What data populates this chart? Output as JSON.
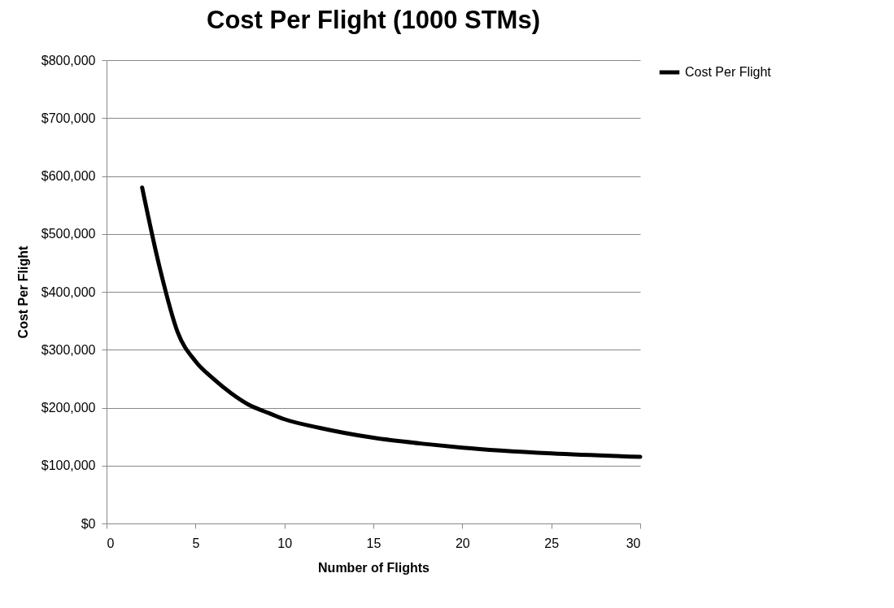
{
  "chart_data": {
    "type": "line",
    "title": "Cost Per Flight (1000 STMs)",
    "xlabel": "Number of Flights",
    "ylabel": "Cost Per Flight",
    "x": [
      2,
      3,
      4,
      5,
      6,
      7,
      8,
      9,
      10,
      12,
      15,
      18,
      20,
      25,
      30
    ],
    "series": [
      {
        "name": "Cost Per Flight",
        "color": "#000000",
        "values": [
          580000,
          440000,
          330000,
          280000,
          250000,
          225000,
          205000,
          192000,
          180000,
          165000,
          148000,
          137000,
          131000,
          121000,
          115000
        ]
      }
    ],
    "xlim": [
      0,
      30
    ],
    "xticks": [
      0,
      5,
      10,
      15,
      20,
      25,
      30
    ],
    "ylim": [
      0,
      800000
    ],
    "yticks": [
      {
        "value": 0,
        "label": "$0"
      },
      {
        "value": 100000,
        "label": "$100,000"
      },
      {
        "value": 200000,
        "label": "$200,000"
      },
      {
        "value": 300000,
        "label": "$300,000"
      },
      {
        "value": 400000,
        "label": "$400,000"
      },
      {
        "value": 500000,
        "label": "$500,000"
      },
      {
        "value": 600000,
        "label": "$600,000"
      },
      {
        "value": 700000,
        "label": "$700,000"
      },
      {
        "value": 800000,
        "label": "$800,000"
      }
    ],
    "grid": "y",
    "legend": "right",
    "marker": "none",
    "line_style": "solid"
  }
}
